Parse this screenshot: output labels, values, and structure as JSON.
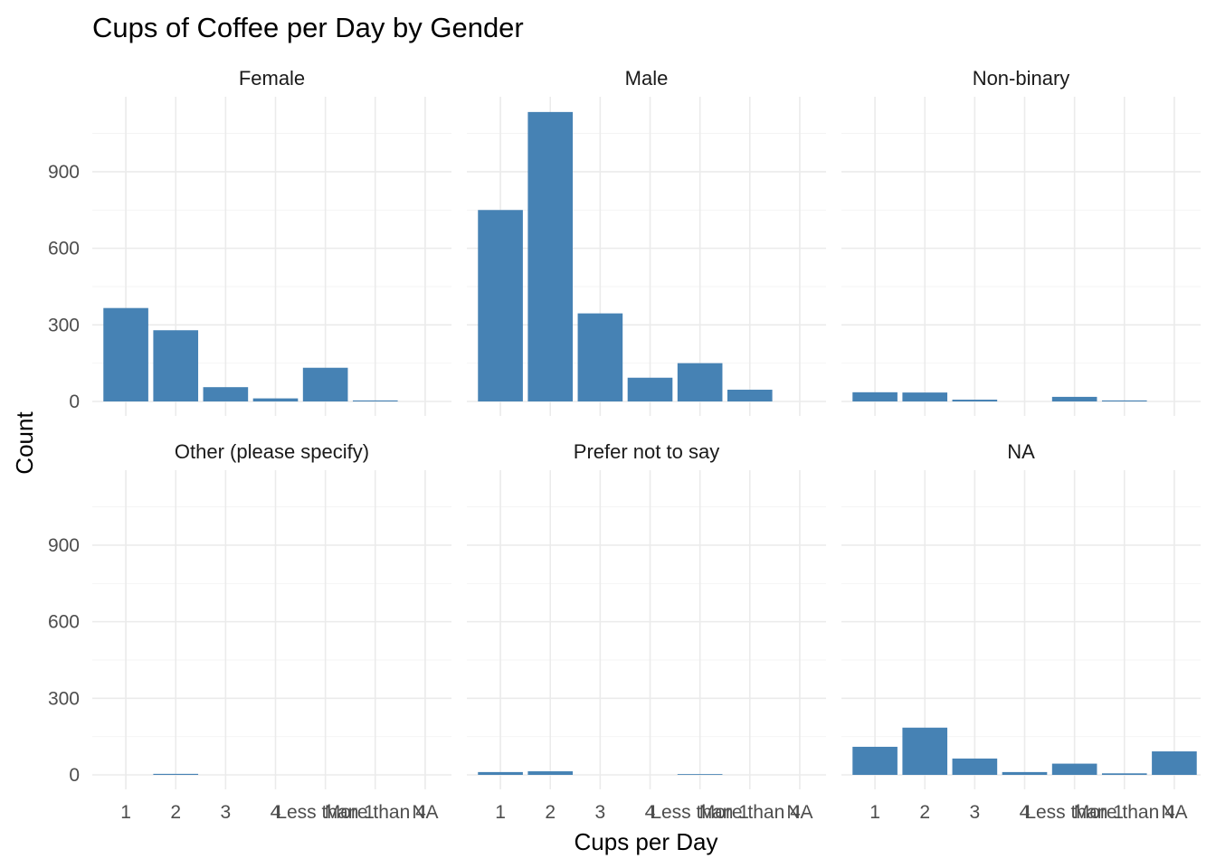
{
  "chart_data": {
    "type": "bar",
    "title": "Cups of Coffee per Day by Gender",
    "xlabel": "Cups per Day",
    "ylabel": "Count",
    "categories": [
      "1",
      "2",
      "3",
      "4",
      "Less than 1",
      "More than 4",
      "NA"
    ],
    "ylim": [
      0,
      1200
    ],
    "yticks": [
      0,
      300,
      600,
      900
    ],
    "grid": true,
    "bar_color": "#4682b4",
    "facet_layout": [
      2,
      3
    ],
    "facets": [
      {
        "name": "Female",
        "values": [
          366,
          279,
          56,
          12,
          132,
          4,
          0
        ]
      },
      {
        "name": "Male",
        "values": [
          750,
          1134,
          345,
          93,
          150,
          46,
          0
        ]
      },
      {
        "name": "Non-binary",
        "values": [
          36,
          35,
          7,
          0,
          18,
          4,
          0
        ]
      },
      {
        "name": "Other (please specify)",
        "values": [
          0,
          4,
          0,
          0,
          0,
          0,
          0
        ]
      },
      {
        "name": "Prefer not to say",
        "values": [
          11,
          14,
          0,
          0,
          3,
          0,
          0
        ]
      },
      {
        "name": "NA",
        "values": [
          110,
          185,
          64,
          11,
          44,
          6,
          92
        ]
      }
    ]
  }
}
